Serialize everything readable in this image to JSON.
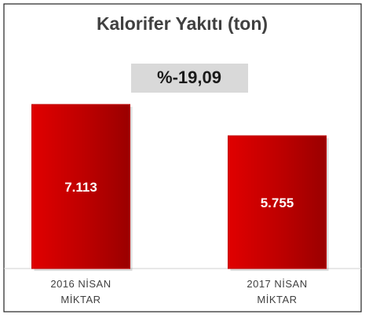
{
  "chart_data": {
    "type": "bar",
    "title": "Kalorifer Yakıtı (ton)",
    "annotation": "%-19,09",
    "categories": [
      "2016 NİSAN MİKTAR",
      "2017 NİSAN MİKTAR"
    ],
    "values": [
      7113,
      5755
    ],
    "value_labels": [
      "7.113",
      "5.755"
    ],
    "color": "#c00000",
    "ylim": [
      0,
      8000
    ]
  }
}
